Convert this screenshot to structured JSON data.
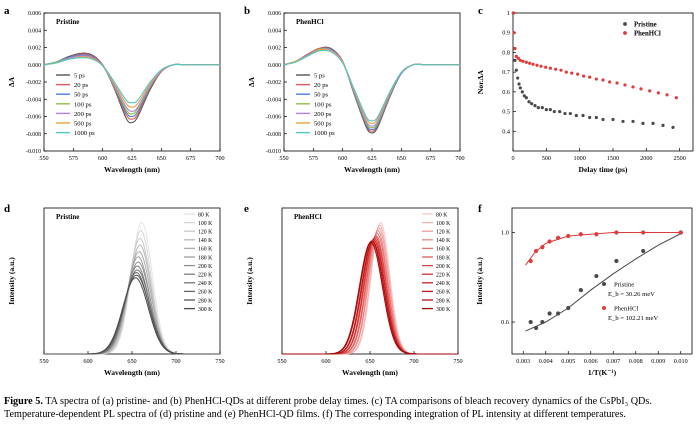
{
  "caption": {
    "label": "Figure 5.",
    "text": " TA spectra of (a) pristine- and (b) PhenHCl-QDs at different probe delay times. (c) TA comparisons of bleach recovery dynamics of the CsPbI₃ QDs. Temperature-dependent PL spectra of (d) pristine and (e) PhenHCl-QD films. (f) The corresponding integration of PL intensity at different temperatures."
  },
  "colors": {
    "ta": [
      "#555555",
      "#e05a5a",
      "#4d7fd9",
      "#8fbf4a",
      "#b684d6",
      "#e8a33d",
      "#4fc7c7"
    ],
    "gray_series": [
      "#e4e4e4",
      "#d6d6d6",
      "#c8c8c8",
      "#bababa",
      "#acacac",
      "#9e9e9e",
      "#909090",
      "#828282",
      "#747474",
      "#666666",
      "#585858",
      "#4a4a4a"
    ],
    "red_series": [
      "#f7c6c6",
      "#f2b0b0",
      "#ee9b9b",
      "#e98585",
      "#e47070",
      "#df5b5b",
      "#da4646",
      "#d53131",
      "#cf1f1f",
      "#c41414",
      "#b50d0d",
      "#a00606"
    ],
    "pristine_dot": "#4a4a4a",
    "phen_dot": "#e23b3b"
  },
  "chart_data": [
    {
      "panel": "a",
      "type": "line",
      "inset_title": "Pristine",
      "xlabel": "Wavelength (nm)",
      "ylabel": "ΔA",
      "xlim": [
        550,
        700
      ],
      "ylim": [
        -0.01,
        0.006
      ],
      "xticks": [
        "550",
        "575",
        "600",
        "625",
        "650",
        "675",
        "700"
      ],
      "yticks": [
        "0.006",
        "0.004",
        "0.002",
        "0.000",
        "-0.002",
        "-0.004",
        "-0.006",
        "-0.008",
        "-0.010"
      ],
      "legend": [
        "5 ps",
        "20 ps",
        "50 ps",
        "100 ps",
        "200 ps",
        "500 ps",
        "1000 ps"
      ],
      "x": [
        550,
        560,
        570,
        580,
        590,
        600,
        610,
        620,
        625,
        630,
        640,
        650,
        660,
        670,
        680,
        690,
        700
      ],
      "series": [
        {
          "name": "5 ps",
          "values": [
            0.0,
            0.0003,
            0.0009,
            0.0013,
            0.0012,
            0.0,
            -0.0028,
            -0.0062,
            -0.0067,
            -0.006,
            -0.003,
            -0.0008,
            0.0,
            0.0,
            0.0,
            0.0,
            0.0
          ]
        },
        {
          "name": "20 ps",
          "values": [
            0.0,
            0.0003,
            0.0008,
            0.0012,
            0.0011,
            0.0,
            -0.0027,
            -0.0058,
            -0.0063,
            -0.0057,
            -0.0028,
            -0.0008,
            0.0,
            0.0,
            0.0,
            0.0,
            0.0
          ]
        },
        {
          "name": "50 ps",
          "values": [
            0.0,
            0.0003,
            0.0008,
            0.0011,
            0.001,
            -0.0001,
            -0.0026,
            -0.0055,
            -0.006,
            -0.0054,
            -0.0027,
            -0.0007,
            0.0,
            0.0,
            0.0,
            0.0,
            0.0
          ]
        },
        {
          "name": "100 ps",
          "values": [
            0.0,
            0.0003,
            0.0007,
            0.001,
            0.0009,
            -0.0001,
            -0.0025,
            -0.0052,
            -0.0057,
            -0.0051,
            -0.0026,
            -0.0007,
            0.0,
            0.0,
            0.0,
            0.0,
            0.0
          ]
        },
        {
          "name": "200 ps",
          "values": [
            0.0,
            0.0002,
            0.0007,
            0.001,
            0.0009,
            -0.0001,
            -0.0024,
            -0.0049,
            -0.0054,
            -0.0049,
            -0.0025,
            -0.0007,
            0.0,
            0.0,
            0.0,
            0.0,
            0.0
          ]
        },
        {
          "name": "500 ps",
          "values": [
            0.0,
            0.0002,
            0.0006,
            0.0009,
            0.0008,
            -0.0001,
            -0.0022,
            -0.0045,
            -0.0049,
            -0.0045,
            -0.0023,
            -0.0006,
            0.0,
            0.0,
            0.0,
            0.0,
            0.0
          ]
        },
        {
          "name": "1000 ps",
          "values": [
            0.0,
            0.0002,
            0.0006,
            0.0008,
            0.0007,
            -0.0001,
            -0.002,
            -0.0041,
            -0.0044,
            -0.0041,
            -0.0021,
            -0.0006,
            0.0,
            0.0,
            0.0,
            0.0,
            0.0
          ]
        }
      ]
    },
    {
      "panel": "b",
      "type": "line",
      "inset_title": "PhenHCl",
      "xlabel": "Wavelength (nm)",
      "ylabel": "ΔA",
      "xlim": [
        550,
        700
      ],
      "ylim": [
        -0.01,
        0.006
      ],
      "xticks": [
        "550",
        "575",
        "600",
        "625",
        "650",
        "675",
        "700"
      ],
      "yticks": [
        "0.006",
        "0.004",
        "0.002",
        "0.000",
        "-0.002",
        "-0.004",
        "-0.006",
        "-0.008",
        "-0.010"
      ],
      "legend": [
        "5 ps",
        "20 ps",
        "50 ps",
        "100 ps",
        "200 ps",
        "500 ps",
        "1000 ps"
      ],
      "x": [
        550,
        560,
        570,
        580,
        590,
        600,
        610,
        620,
        625,
        630,
        640,
        650,
        660,
        670,
        680,
        690,
        700
      ],
      "series": [
        {
          "name": "5 ps",
          "values": [
            0.0,
            0.0004,
            0.0012,
            0.0019,
            0.0019,
            0.0004,
            -0.0035,
            -0.0072,
            -0.0079,
            -0.0072,
            -0.0038,
            -0.001,
            0.0,
            0.0,
            0.0,
            0.0,
            0.0
          ]
        },
        {
          "name": "20 ps",
          "values": [
            0.0,
            0.0004,
            0.0012,
            0.0019,
            0.0018,
            0.0004,
            -0.0034,
            -0.007,
            -0.0077,
            -0.007,
            -0.0037,
            -0.001,
            0.0,
            0.0,
            0.0,
            0.0,
            0.0
          ]
        },
        {
          "name": "50 ps",
          "values": [
            0.0,
            0.0004,
            0.0011,
            0.0018,
            0.0018,
            0.0003,
            -0.0033,
            -0.0069,
            -0.0075,
            -0.0069,
            -0.0036,
            -0.001,
            0.0,
            0.0,
            0.0,
            0.0,
            0.0
          ]
        },
        {
          "name": "100 ps",
          "values": [
            0.0,
            0.0004,
            0.0011,
            0.0018,
            0.0017,
            0.0003,
            -0.0032,
            -0.0067,
            -0.0073,
            -0.0067,
            -0.0035,
            -0.0009,
            0.0,
            0.0,
            0.0,
            0.0,
            0.0
          ]
        },
        {
          "name": "200 ps",
          "values": [
            0.0,
            0.0004,
            0.0011,
            0.0017,
            0.0017,
            0.0003,
            -0.0031,
            -0.0065,
            -0.0071,
            -0.0065,
            -0.0034,
            -0.0009,
            0.0,
            0.0,
            0.0,
            0.0,
            0.0
          ]
        },
        {
          "name": "500 ps",
          "values": [
            0.0,
            0.0004,
            0.001,
            0.0017,
            0.0016,
            0.0003,
            -0.003,
            -0.0062,
            -0.0068,
            -0.0062,
            -0.0033,
            -0.0009,
            0.0,
            0.0,
            0.0,
            0.0,
            0.0
          ]
        },
        {
          "name": "1000 ps",
          "values": [
            0.0,
            0.0003,
            0.001,
            0.0016,
            0.0015,
            0.0002,
            -0.0029,
            -0.006,
            -0.0065,
            -0.006,
            -0.0032,
            -0.0009,
            0.0,
            0.0,
            0.0,
            0.0,
            0.0
          ]
        }
      ]
    },
    {
      "panel": "c",
      "type": "scatter",
      "xlabel": "Delay time (ps)",
      "ylabel": "Nor.ΔA",
      "xlim": [
        0,
        2700
      ],
      "ylim": [
        0.3,
        1.0
      ],
      "xticks": [
        "0",
        "500",
        "1000",
        "1500",
        "2000",
        "2500"
      ],
      "yticks": [
        "1",
        "0.9",
        "0.8",
        "0.7",
        "0.6",
        "0.5",
        "0.4"
      ],
      "legend": [
        "Pristine",
        "PhenHCl"
      ],
      "series": [
        {
          "name": "Pristine",
          "x": [
            5,
            15,
            30,
            50,
            70,
            90,
            110,
            140,
            170,
            200,
            240,
            280,
            330,
            380,
            440,
            500,
            560,
            620,
            700,
            780,
            860,
            950,
            1050,
            1150,
            1250,
            1350,
            1500,
            1650,
            1800,
            1950,
            2100,
            2250,
            2400
          ],
          "values": [
            1.0,
            0.82,
            0.76,
            0.71,
            0.67,
            0.64,
            0.62,
            0.6,
            0.58,
            0.57,
            0.55,
            0.54,
            0.53,
            0.52,
            0.52,
            0.51,
            0.51,
            0.5,
            0.5,
            0.49,
            0.49,
            0.48,
            0.48,
            0.47,
            0.47,
            0.46,
            0.46,
            0.45,
            0.45,
            0.44,
            0.44,
            0.43,
            0.42
          ]
        },
        {
          "name": "PhenHCl",
          "x": [
            5,
            15,
            30,
            50,
            80,
            110,
            150,
            200,
            250,
            300,
            360,
            420,
            490,
            560,
            640,
            720,
            800,
            880,
            970,
            1060,
            1150,
            1250,
            1350,
            1450,
            1560,
            1680,
            1800,
            1920,
            2050,
            2180,
            2310,
            2450
          ],
          "values": [
            1.0,
            0.9,
            0.82,
            0.78,
            0.77,
            0.76,
            0.755,
            0.75,
            0.745,
            0.74,
            0.735,
            0.73,
            0.725,
            0.72,
            0.715,
            0.71,
            0.7,
            0.695,
            0.69,
            0.68,
            0.675,
            0.665,
            0.66,
            0.65,
            0.645,
            0.635,
            0.625,
            0.615,
            0.605,
            0.595,
            0.585,
            0.57
          ]
        }
      ]
    },
    {
      "panel": "d",
      "type": "line",
      "inset_title": "Pristine",
      "xlabel": "Wavelength (nm)",
      "ylabel": "Intensity (a.u.)",
      "xlim": [
        550,
        750
      ],
      "xticks": [
        "550",
        "600",
        "650",
        "700",
        "750"
      ],
      "legend": [
        "80 K",
        "100 K",
        "120 K",
        "140 K",
        "160 K",
        "180 K",
        "200 K",
        "220 K",
        "240 K",
        "260 K",
        "280 K",
        "300 K"
      ],
      "series_peaks": [
        {
          "name": "80 K",
          "center": 661,
          "height": 1.0,
          "width": 12.0
        },
        {
          "name": "100 K",
          "center": 660,
          "height": 0.94,
          "width": 12.0
        },
        {
          "name": "120 K",
          "center": 659,
          "height": 0.88,
          "width": 12.5
        },
        {
          "name": "140 K",
          "center": 659,
          "height": 0.83,
          "width": 12.5
        },
        {
          "name": "160 K",
          "center": 658,
          "height": 0.78,
          "width": 13.0
        },
        {
          "name": "180 K",
          "center": 657,
          "height": 0.74,
          "width": 13.0
        },
        {
          "name": "200 K",
          "center": 657,
          "height": 0.7,
          "width": 13.5
        },
        {
          "name": "220 K",
          "center": 656,
          "height": 0.67,
          "width": 13.5
        },
        {
          "name": "240 K",
          "center": 656,
          "height": 0.64,
          "width": 14.0
        },
        {
          "name": "260 K",
          "center": 655,
          "height": 0.62,
          "width": 14.0
        },
        {
          "name": "280 K",
          "center": 655,
          "height": 0.6,
          "width": 14.5
        },
        {
          "name": "300 K",
          "center": 654,
          "height": 0.58,
          "width": 14.5
        }
      ]
    },
    {
      "panel": "e",
      "type": "line",
      "inset_title": "PhenHCl",
      "xlabel": "Wavelength (nm)",
      "ylabel": "Intensity (a.u.)",
      "xlim": [
        550,
        750
      ],
      "xticks": [
        "550",
        "600",
        "650",
        "700",
        "750"
      ],
      "legend": [
        "80 K",
        "100 K",
        "120 K",
        "140 K",
        "160 K",
        "180 K",
        "200 K",
        "220 K",
        "240 K",
        "260 K",
        "280 K",
        "300 K"
      ],
      "series_peaks": [
        {
          "name": "80 K",
          "center": 662,
          "height": 1.0,
          "width": 10.5
        },
        {
          "name": "100 K",
          "center": 661,
          "height": 0.98,
          "width": 10.5
        },
        {
          "name": "120 K",
          "center": 660,
          "height": 0.96,
          "width": 11.0
        },
        {
          "name": "140 K",
          "center": 659,
          "height": 0.94,
          "width": 11.0
        },
        {
          "name": "160 K",
          "center": 658,
          "height": 0.92,
          "width": 11.5
        },
        {
          "name": "180 K",
          "center": 657,
          "height": 0.9,
          "width": 11.5
        },
        {
          "name": "200 K",
          "center": 656,
          "height": 0.89,
          "width": 12.0
        },
        {
          "name": "220 K",
          "center": 655,
          "height": 0.88,
          "width": 12.0
        },
        {
          "name": "240 K",
          "center": 654,
          "height": 0.87,
          "width": 12.5
        },
        {
          "name": "260 K",
          "center": 653,
          "height": 0.86,
          "width": 12.5
        },
        {
          "name": "280 K",
          "center": 652,
          "height": 0.86,
          "width": 13.0
        },
        {
          "name": "300 K",
          "center": 651,
          "height": 0.85,
          "width": 13.0
        }
      ]
    },
    {
      "panel": "f",
      "type": "scatter",
      "xlabel": "1/T(K⁻¹)",
      "ylabel": "Intensity (a.u.)",
      "xlim": [
        0.0025,
        0.0105
      ],
      "ylim": [
        0.5,
        1.15
      ],
      "xticks": [
        "0.003",
        "0.004",
        "0.005",
        "0.006",
        "0.007",
        "0.008",
        "0.009",
        "0.010"
      ],
      "yticks": [
        "1.0"
      ],
      "yticks_values": [
        1.0
      ],
      "y_aux_label": "0.6",
      "legend": [
        "Pristine",
        "PhenHCl"
      ],
      "legend_eb_pristine": "E_b = 30.26 meV",
      "legend_eb_phen": "E_b = 102.21 meV",
      "series": [
        {
          "name": "Pristine",
          "x": [
            0.00333,
            0.00357,
            0.00385,
            0.00417,
            0.00455,
            0.005,
            0.00556,
            0.00625,
            0.00714,
            0.00833,
            0.01
          ],
          "values": [
            0.6,
            0.58,
            0.6,
            0.63,
            0.63,
            0.65,
            0.72,
            0.78,
            0.85,
            0.9,
            1.0
          ]
        },
        {
          "name": "PhenHCl",
          "x": [
            0.00333,
            0.00357,
            0.00385,
            0.00417,
            0.00455,
            0.005,
            0.00556,
            0.00625,
            0.00714,
            0.00833,
            0.01
          ],
          "values": [
            0.85,
            0.9,
            0.92,
            0.95,
            0.97,
            0.98,
            0.99,
            0.99,
            1.0,
            1.0,
            1.0
          ]
        }
      ],
      "fits": [
        {
          "name": "Pristine",
          "x": [
            0.0031,
            0.004,
            0.005,
            0.006,
            0.007,
            0.008,
            0.009,
            0.0101
          ],
          "values": [
            0.57,
            0.6,
            0.65,
            0.72,
            0.79,
            0.86,
            0.93,
            1.0
          ]
        },
        {
          "name": "PhenHCl",
          "x": [
            0.0031,
            0.0035,
            0.004,
            0.0045,
            0.005,
            0.006,
            0.007,
            0.008,
            0.0101
          ],
          "values": [
            0.83,
            0.89,
            0.94,
            0.96,
            0.98,
            0.99,
            1.0,
            1.0,
            1.0
          ]
        }
      ]
    }
  ]
}
